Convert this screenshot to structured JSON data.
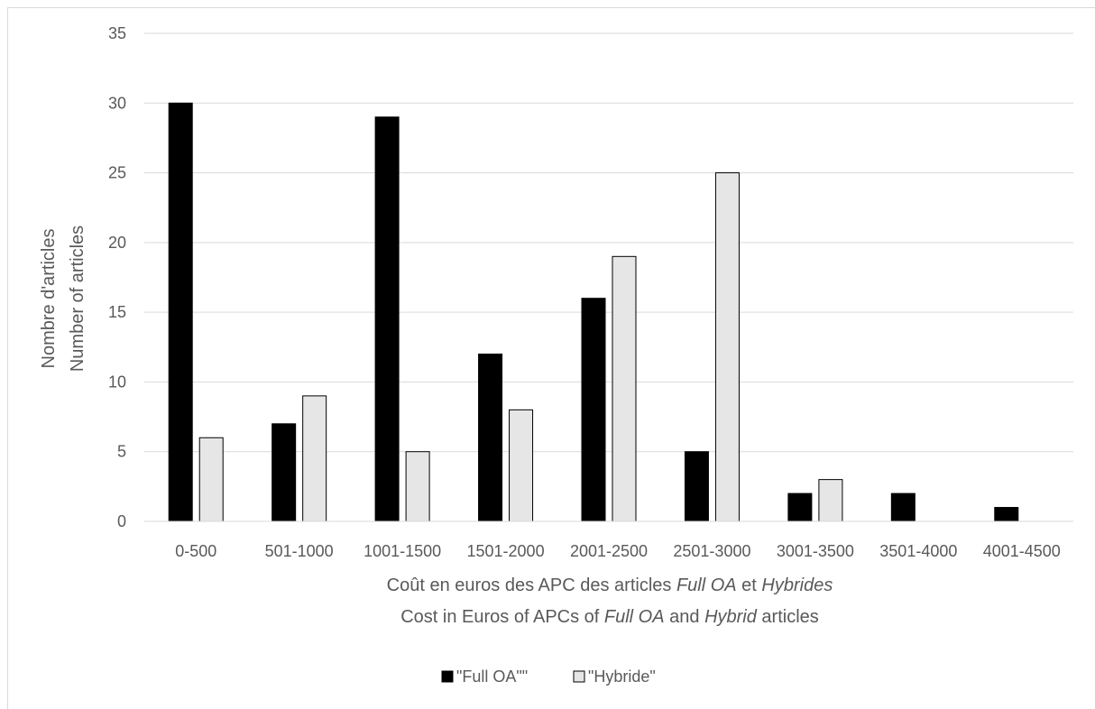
{
  "chart_data": {
    "type": "bar",
    "title": "",
    "xlabel_line1": [
      "Coût en euros des APC des articles ",
      "Full OA",
      " et ",
      "Hybrides"
    ],
    "xlabel_line2": [
      "Cost in Euros of APCs of ",
      "Full OA",
      " and ",
      "Hybrid",
      " articles"
    ],
    "ylabel_line1": "Nombre d'articles",
    "ylabel_line2": "Number of articles",
    "ylim": [
      0,
      35
    ],
    "yticks": [
      0,
      5,
      10,
      15,
      20,
      25,
      30,
      35
    ],
    "grid": true,
    "legend_position": "bottom",
    "categories": [
      "0-500",
      "501-1000",
      "1001-1500",
      "1501-2000",
      "2001-2500",
      "2501-3000",
      "3001-3500",
      "3501-4000",
      "4001-4500"
    ],
    "series": [
      {
        "name": "\"Full OA\"\"",
        "color": "#000000",
        "values": [
          30,
          7,
          29,
          12,
          16,
          5,
          2,
          2,
          1
        ]
      },
      {
        "name": "\"Hybride\"",
        "color": "#e6e6e6",
        "values": [
          6,
          9,
          5,
          8,
          19,
          25,
          3,
          0,
          0
        ]
      }
    ]
  }
}
